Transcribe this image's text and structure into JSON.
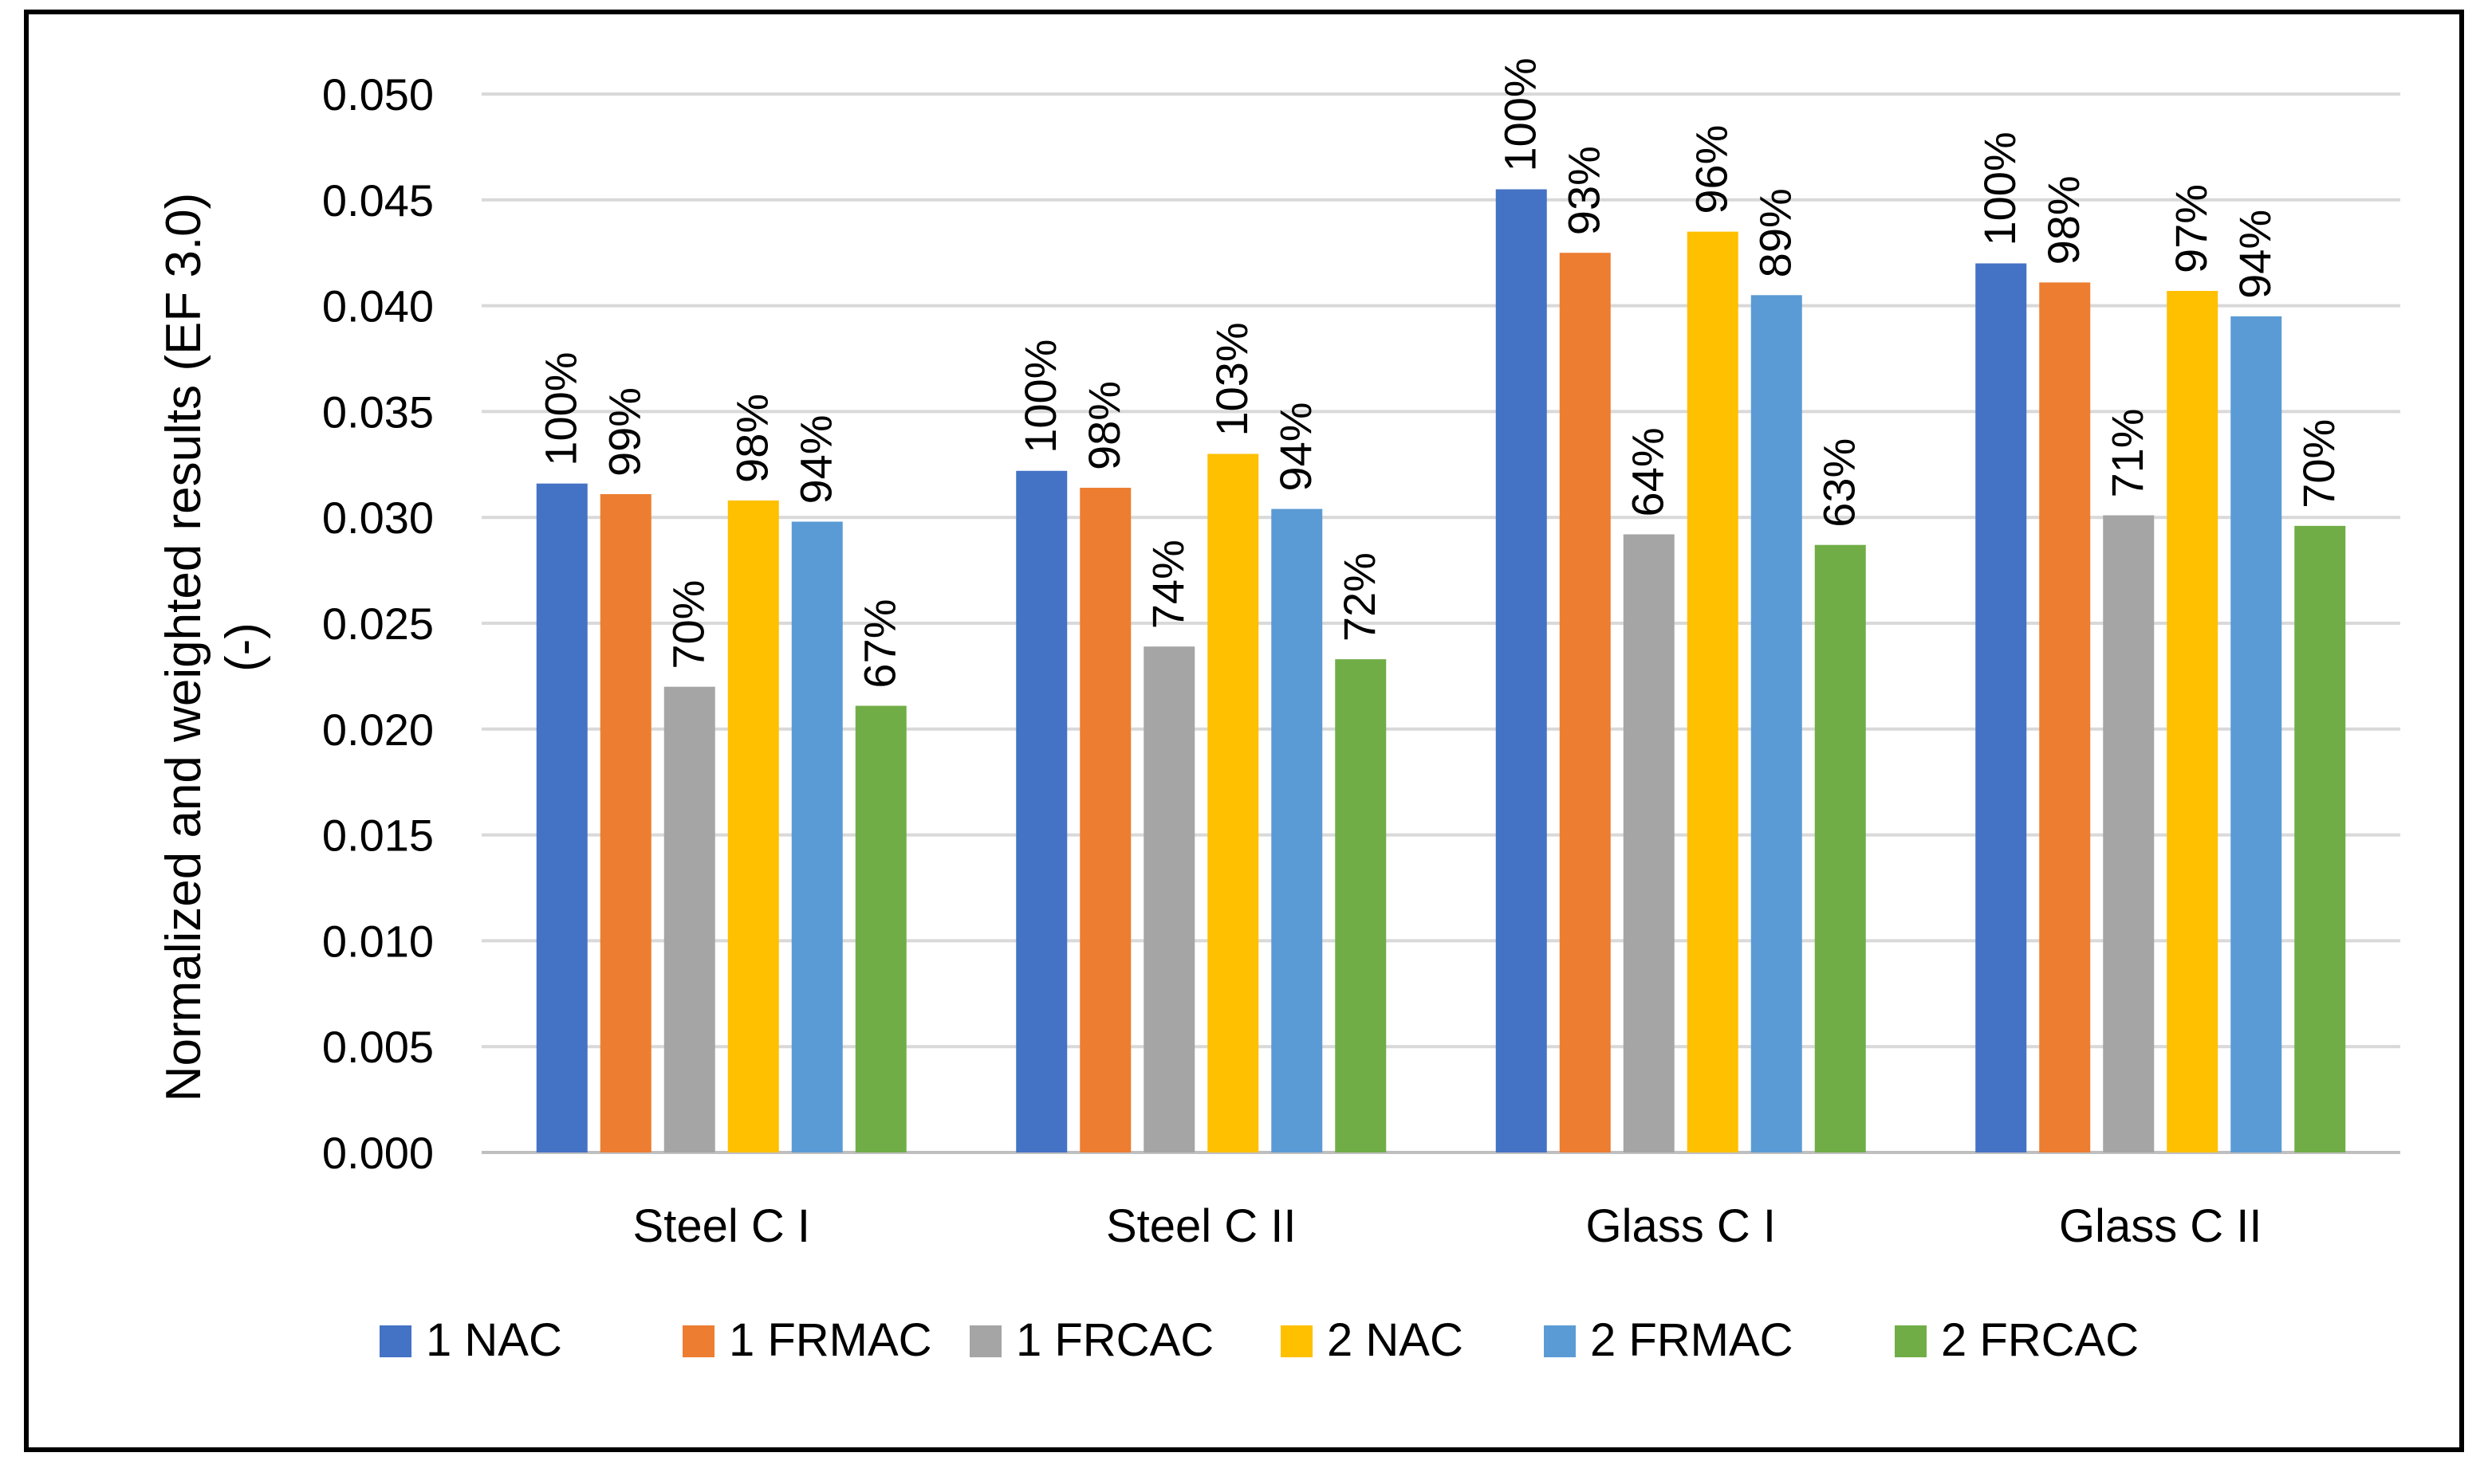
{
  "chart_data": {
    "type": "bar",
    "title": "",
    "xlabel": "",
    "ylabel": "Normalized and weighted results (EF 3.0) (-)",
    "ylabel_lines": [
      "Normalized and weighted results (EF 3.0)",
      "(-)"
    ],
    "ylim": [
      0,
      0.05
    ],
    "yticks": [
      "0.000",
      "0.005",
      "0.010",
      "0.015",
      "0.020",
      "0.025",
      "0.030",
      "0.035",
      "0.040",
      "0.045",
      "0.050"
    ],
    "grid": true,
    "legend_position": "bottom",
    "categories": [
      "Steel C I",
      "Steel C II",
      "Glass C I",
      "Glass C II"
    ],
    "series": [
      {
        "name": "1 NAC",
        "color": "#4472C4",
        "values": [
          0.0316,
          0.0322,
          0.0455,
          0.042
        ],
        "labels": [
          "100%",
          "100%",
          "100%",
          "100%"
        ]
      },
      {
        "name": "1 FRMAC",
        "color": "#ED7D31",
        "values": [
          0.0311,
          0.0314,
          0.0425,
          0.0411
        ],
        "labels": [
          "99%",
          "98%",
          "93%",
          "98%"
        ]
      },
      {
        "name": "1 FRCAC",
        "color": "#A5A5A5",
        "values": [
          0.022,
          0.0239,
          0.0292,
          0.0301
        ],
        "labels": [
          "70%",
          "74%",
          "64%",
          "71%"
        ]
      },
      {
        "name": "2 NAC",
        "color": "#FFC000",
        "values": [
          0.0308,
          0.033,
          0.0435,
          0.0407
        ],
        "labels": [
          "98%",
          "103%",
          "96%",
          "97%"
        ]
      },
      {
        "name": "2 FRMAC",
        "color": "#5B9BD5",
        "values": [
          0.0298,
          0.0304,
          0.0405,
          0.0395
        ],
        "labels": [
          "94%",
          "94%",
          "89%",
          "94%"
        ]
      },
      {
        "name": "2 FRCAC",
        "color": "#70AD47",
        "values": [
          0.0211,
          0.0233,
          0.0287,
          0.0296
        ],
        "labels": [
          "67%",
          "72%",
          "63%",
          "70%"
        ]
      }
    ]
  }
}
